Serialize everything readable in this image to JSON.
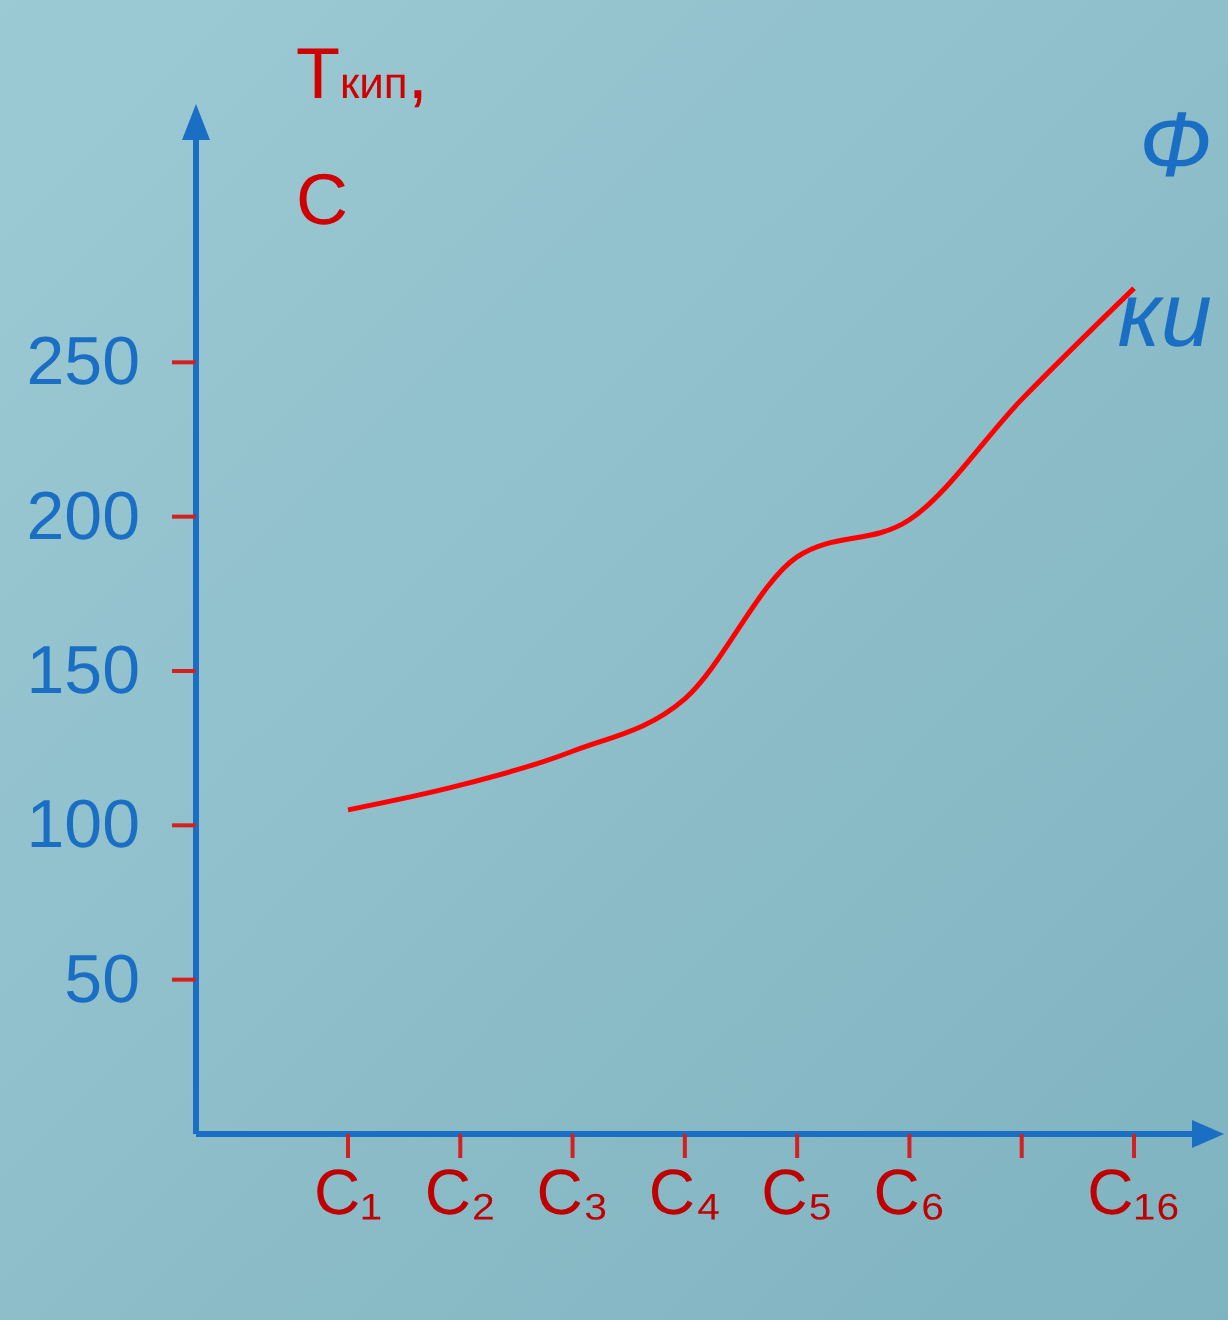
{
  "chart_data": {
    "type": "line",
    "ylabel": "Т$_{кип}$, C",
    "annotations": [
      "Ф",
      "ки"
    ],
    "categories": [
      "C₁",
      "C₂",
      "C₃",
      "C₄",
      "C₅",
      "C₆",
      null,
      "C₁₆"
    ],
    "series": [
      {
        "color": "#ff0000",
        "values": [
          105,
          113,
          124,
          141,
          187,
          199,
          238,
          274
        ]
      }
    ],
    "ylim": [
      0,
      300
    ],
    "yticks": [
      50,
      100,
      150,
      200,
      250
    ],
    "grid": false,
    "legend": false,
    "marker": "none",
    "line_style": "solid"
  }
}
